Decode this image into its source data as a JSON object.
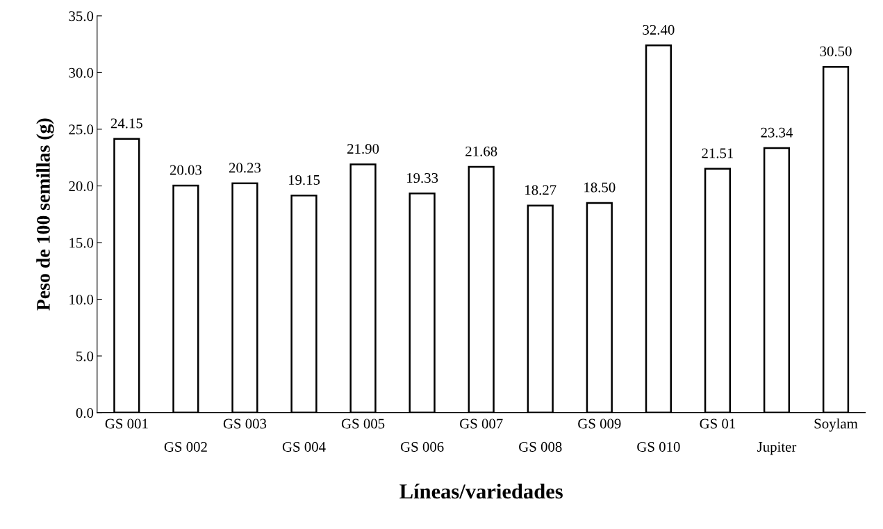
{
  "chart_data": {
    "type": "bar",
    "xlabel": "Líneas/variedades",
    "ylabel": "Peso de 100 semillas (g)",
    "categories": [
      "GS 001",
      "GS 002",
      "GS 003",
      "GS 004",
      "GS 005",
      "GS 006",
      "GS 007",
      "GS 008",
      "GS 009",
      "GS 010",
      "GS 01",
      "Jupiter",
      "Soylam"
    ],
    "values": [
      24.15,
      20.03,
      20.23,
      19.15,
      21.9,
      19.33,
      21.68,
      18.27,
      18.5,
      32.4,
      21.51,
      23.34,
      30.5
    ],
    "value_labels": [
      "24.15",
      "20.03",
      "20.23",
      "19.15",
      "21.90",
      "19.33",
      "21.68",
      "18.27",
      "18.50",
      "32.40",
      "21.51",
      "23.34",
      "30.50"
    ],
    "color": "#ffffff",
    "ylim": [
      0,
      35
    ],
    "yticks": [
      {
        "value": 0,
        "label": "0.0"
      },
      {
        "value": 5,
        "label": "5.0"
      },
      {
        "value": 10,
        "label": "10.0"
      },
      {
        "value": 15,
        "label": "15.0"
      },
      {
        "value": 20,
        "label": "20.0"
      },
      {
        "value": 25,
        "label": "25.0"
      },
      {
        "value": 30,
        "label": "30.0"
      },
      {
        "value": 35,
        "label": "35.0"
      }
    ],
    "grid": false,
    "legend": false
  }
}
